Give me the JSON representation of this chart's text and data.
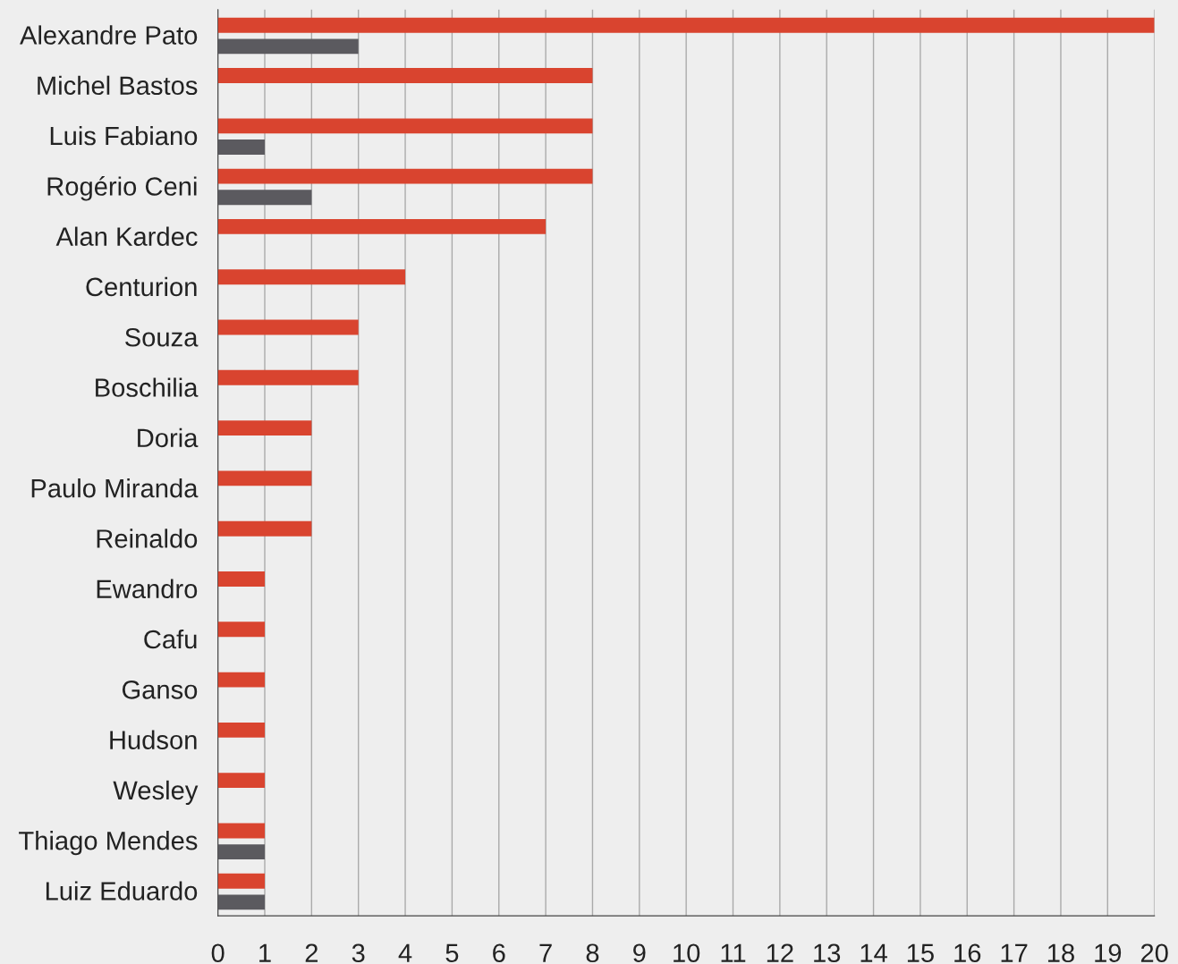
{
  "chart_data": {
    "type": "bar",
    "orientation": "horizontal",
    "categories": [
      "Alexandre Pato",
      "Michel Bastos",
      "Luis Fabiano",
      "Rogério Ceni",
      "Alan Kardec",
      "Centurion",
      "Souza",
      "Boschilia",
      "Doria",
      "Paulo Miranda",
      "Reinaldo",
      "Ewandro",
      "Cafu",
      "Ganso",
      "Hudson",
      "Wesley",
      "Thiago Mendes",
      "Luiz Eduardo"
    ],
    "series": [
      {
        "color": "#d9442f",
        "values": [
          20,
          8,
          8,
          8,
          7,
          4,
          3,
          3,
          2,
          2,
          2,
          1,
          1,
          1,
          1,
          1,
          1,
          1
        ]
      },
      {
        "color": "#5b5a5f",
        "values": [
          3,
          null,
          1,
          2,
          null,
          null,
          null,
          null,
          null,
          null,
          null,
          null,
          null,
          null,
          null,
          null,
          1,
          1
        ]
      }
    ],
    "xlim": [
      0,
      20
    ],
    "xticks": [
      0,
      1,
      2,
      3,
      4,
      5,
      6,
      7,
      8,
      9,
      10,
      11,
      12,
      13,
      14,
      15,
      16,
      17,
      18,
      19,
      20
    ],
    "grid": "x",
    "legend": false
  }
}
